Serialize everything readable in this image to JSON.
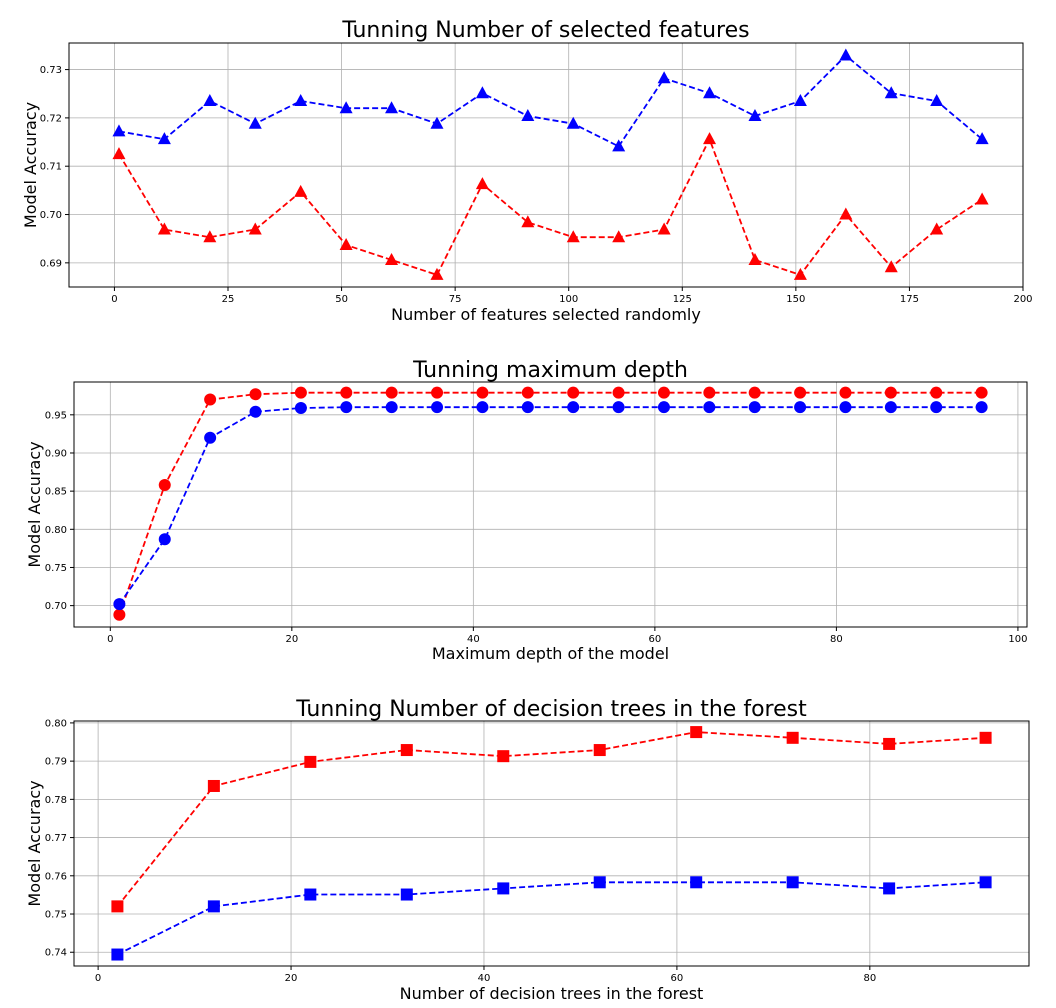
{
  "chart_data": [
    {
      "type": "line",
      "title": "Tunning Number of selected features",
      "xlabel": "Number of features selected randomly",
      "ylabel": "Model Accuracy",
      "marker": "triangle",
      "xlim": [
        -10,
        200
      ],
      "ylim": [
        0.685,
        0.7355
      ],
      "xticks": [
        0,
        25,
        50,
        75,
        100,
        125,
        150,
        175,
        200
      ],
      "yticks": [
        0.69,
        0.7,
        0.71,
        0.72,
        0.73
      ],
      "ytick_labels": [
        "0.69",
        "0.70",
        "0.71",
        "0.72",
        "0.73"
      ],
      "x": [
        1,
        11,
        21,
        31,
        41,
        51,
        61,
        71,
        81,
        91,
        101,
        111,
        121,
        131,
        141,
        151,
        161,
        171,
        181,
        191
      ],
      "series": [
        {
          "color": "#0000ff",
          "values": [
            0.7172,
            0.7156,
            0.7235,
            0.7188,
            0.7235,
            0.722,
            0.722,
            0.7188,
            0.7251,
            0.7204,
            0.7188,
            0.7141,
            0.7282,
            0.7251,
            0.7204,
            0.7235,
            0.7329,
            0.7251,
            0.7235,
            0.7156
          ]
        },
        {
          "color": "#ff0000",
          "values": [
            0.7125,
            0.6969,
            0.6953,
            0.6969,
            0.7047,
            0.6937,
            0.6906,
            0.6875,
            0.7063,
            0.6984,
            0.6953,
            0.6953,
            0.6969,
            0.7156,
            0.6906,
            0.6875,
            0.7,
            0.6891,
            0.6969,
            0.7031
          ]
        }
      ]
    },
    {
      "type": "line",
      "title": "Tunning maximum depth",
      "xlabel": "Maximum depth of the model",
      "ylabel": "Model Accuracy",
      "marker": "circle",
      "xlim": [
        -4,
        101
      ],
      "ylim": [
        0.672,
        0.993
      ],
      "xticks": [
        0,
        20,
        40,
        60,
        80,
        100
      ],
      "yticks": [
        0.7,
        0.75,
        0.8,
        0.85,
        0.9,
        0.95
      ],
      "ytick_labels": [
        "0.70",
        "0.75",
        "0.80",
        "0.85",
        "0.90",
        "0.95"
      ],
      "x": [
        1,
        6,
        11,
        16,
        21,
        26,
        31,
        36,
        41,
        46,
        51,
        56,
        61,
        66,
        71,
        76,
        81,
        86,
        91,
        96
      ],
      "series": [
        {
          "color": "#ff0000",
          "values": [
            0.688,
            0.858,
            0.97,
            0.977,
            0.979,
            0.979,
            0.979,
            0.979,
            0.979,
            0.979,
            0.979,
            0.979,
            0.979,
            0.979,
            0.979,
            0.979,
            0.979,
            0.979,
            0.979,
            0.979
          ]
        },
        {
          "color": "#0000ff",
          "values": [
            0.702,
            0.787,
            0.92,
            0.954,
            0.959,
            0.96,
            0.96,
            0.96,
            0.96,
            0.96,
            0.96,
            0.96,
            0.96,
            0.96,
            0.96,
            0.96,
            0.96,
            0.96,
            0.96,
            0.96
          ]
        }
      ]
    },
    {
      "type": "line",
      "title": "Tunning Number of decision trees in the forest",
      "xlabel": "Number of decision trees in the forest",
      "ylabel": "Model Accuracy",
      "marker": "square",
      "xlim": [
        -2.5,
        96.5
      ],
      "ylim": [
        0.7364,
        0.8005
      ],
      "xticks": [
        0,
        20,
        40,
        60,
        80
      ],
      "yticks": [
        0.74,
        0.75,
        0.76,
        0.77,
        0.78,
        0.79,
        0.8
      ],
      "ytick_labels": [
        "0.74",
        "0.75",
        "0.76",
        "0.77",
        "0.78",
        "0.79",
        "0.80"
      ],
      "x": [
        2,
        12,
        22,
        32,
        42,
        52,
        62,
        72,
        82,
        92
      ],
      "series": [
        {
          "color": "#ff0000",
          "values": [
            0.752,
            0.7835,
            0.7898,
            0.7929,
            0.7913,
            0.7929,
            0.7976,
            0.7961,
            0.7945,
            0.7961
          ]
        },
        {
          "color": "#0000ff",
          "values": [
            0.7394,
            0.752,
            0.7551,
            0.7551,
            0.7567,
            0.7583,
            0.7583,
            0.7583,
            0.7567,
            0.7583
          ]
        }
      ]
    }
  ]
}
